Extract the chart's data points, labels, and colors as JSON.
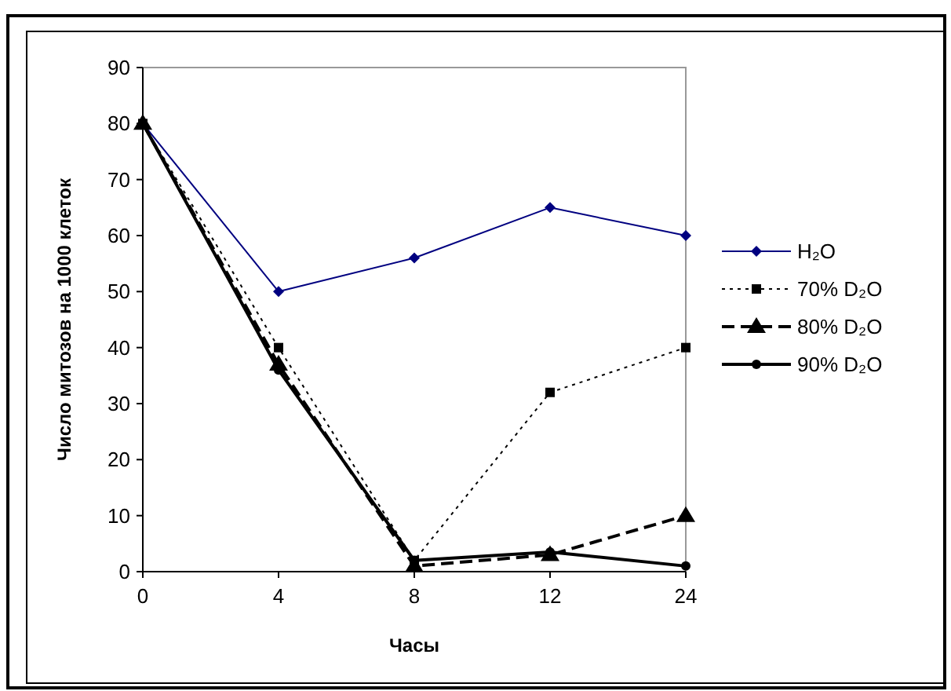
{
  "chart_data": {
    "type": "line",
    "xlabel": "Часы",
    "ylabel": "Число митозов на 1000 клеток",
    "categories": [
      "0",
      "4",
      "8",
      "12",
      "24"
    ],
    "ylim": [
      0,
      90
    ],
    "yticks": [
      0,
      10,
      20,
      30,
      40,
      50,
      60,
      70,
      80,
      90
    ],
    "grid": false,
    "legend": "right",
    "series": [
      {
        "name": "H₂O",
        "color": "#000080",
        "marker": "diamond",
        "line_style": "solid",
        "values": [
          80,
          50,
          56,
          65,
          60
        ]
      },
      {
        "name": "70% D₂O",
        "color": "#000000",
        "marker": "square",
        "line_style": "dotted",
        "values": [
          80,
          40,
          2,
          32,
          40
        ]
      },
      {
        "name": "80% D₂O",
        "color": "#000000",
        "marker": "triangle",
        "line_style": "dashed",
        "values": [
          80,
          37,
          1,
          3,
          10
        ]
      },
      {
        "name": "90% D₂O",
        "color": "#000000",
        "marker": "circle",
        "line_style": "solid",
        "values": [
          80,
          36,
          2,
          3.5,
          1
        ]
      }
    ]
  }
}
